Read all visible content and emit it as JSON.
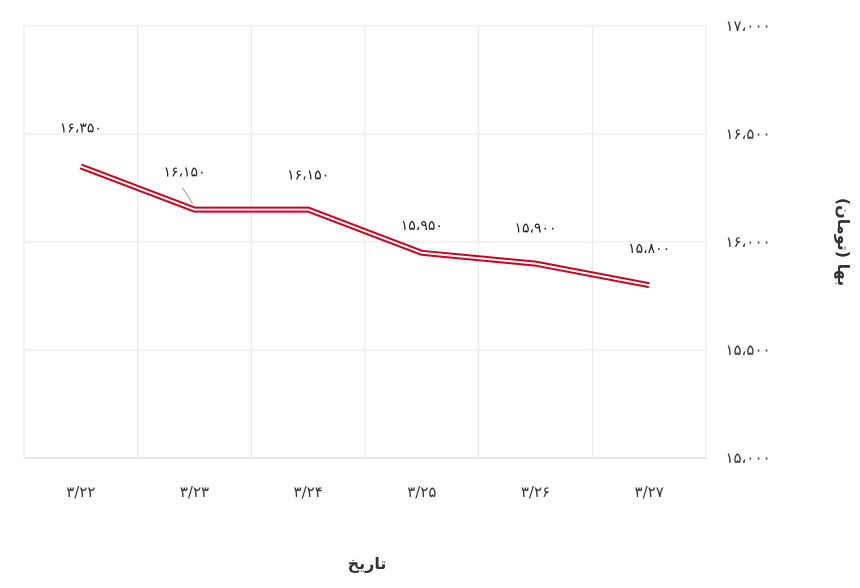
{
  "chart_data": {
    "type": "line",
    "categories": [
      "۳/۲۲",
      "۳/۲۳",
      "۳/۲۴",
      "۳/۲۵",
      "۳/۲۶",
      "۳/۲۷"
    ],
    "series": [
      {
        "values": [
          16350,
          16150,
          16150,
          15950,
          15900,
          15800
        ],
        "labels": [
          "۱۶،۳۵۰",
          "۱۶،۱۵۰",
          "۱۶،۱۵۰",
          "۱۵،۹۵۰",
          "۱۵،۹۰۰",
          "۱۵،۸۰۰"
        ],
        "color": "#d0021b"
      }
    ],
    "xlabel": "تاریخ",
    "ylabel": "بها (تومان)",
    "ylim": [
      15000,
      17000
    ],
    "yticks": [
      15000,
      15500,
      16000,
      16500,
      17000
    ],
    "ytick_labels": [
      "۱۵،۰۰۰",
      "۱۵،۵۰۰",
      "۱۶،۰۰۰",
      "۱۶،۵۰۰",
      "۱۷،۰۰۰"
    ],
    "yaxis_position": "right",
    "grid": true
  }
}
